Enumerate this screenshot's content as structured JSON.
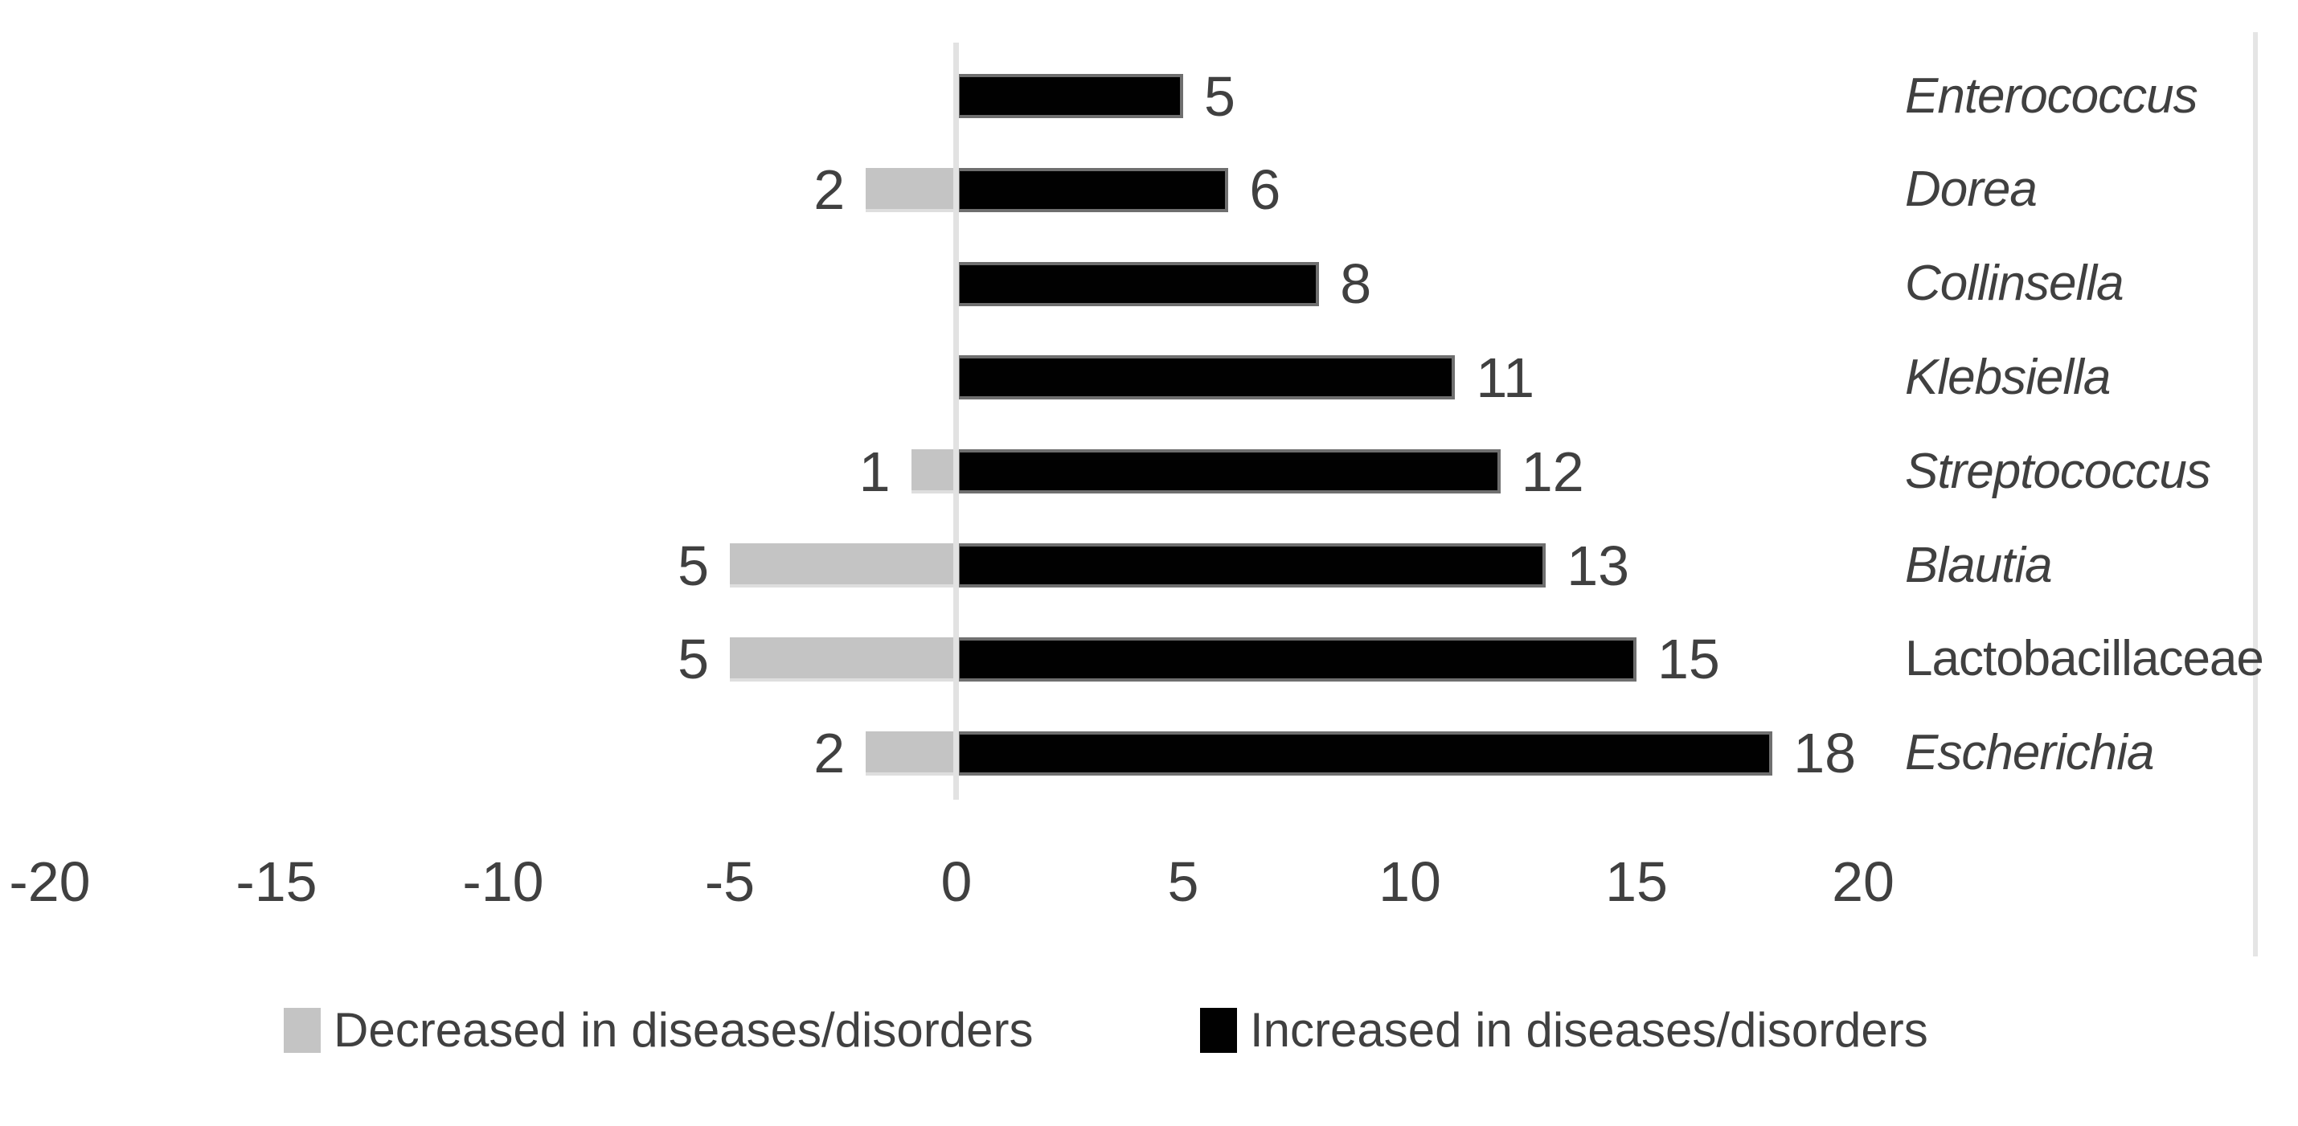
{
  "chart_data": {
    "type": "bar",
    "orientation": "horizontal-diverging",
    "title": "",
    "xlabel": "",
    "ylabel": "",
    "categories": [
      "Enterococcus",
      "Dorea",
      "Collinsella",
      "Klebsiella",
      "Streptococcus",
      "Blautia",
      "Lactobacillaceae",
      "Escherichia"
    ],
    "categories_italic": [
      true,
      true,
      true,
      true,
      true,
      true,
      false,
      true
    ],
    "series": [
      {
        "name": "Decreased in diseases/disorders",
        "direction": "negative",
        "color": "#c4c4c4",
        "values": [
          0,
          2,
          0,
          0,
          1,
          5,
          5,
          2
        ]
      },
      {
        "name": "Increased in diseases/disorders",
        "direction": "positive",
        "color": "#010101",
        "values": [
          5,
          6,
          8,
          11,
          12,
          13,
          15,
          18
        ]
      }
    ],
    "data_labels_shown": true,
    "x_ticks": [
      -20,
      -15,
      -10,
      -5,
      0,
      5,
      10,
      15,
      20
    ],
    "xlim": [
      -20,
      20
    ],
    "grid": false,
    "legend_position": "bottom"
  },
  "colors": {
    "text": "#404040",
    "bar_increased": "#010101",
    "bar_decreased": "#c4c4c4",
    "zero_axis_line": "#e2e2e2",
    "right_border_line": "#e5e5e5",
    "background": "#ffffff"
  }
}
